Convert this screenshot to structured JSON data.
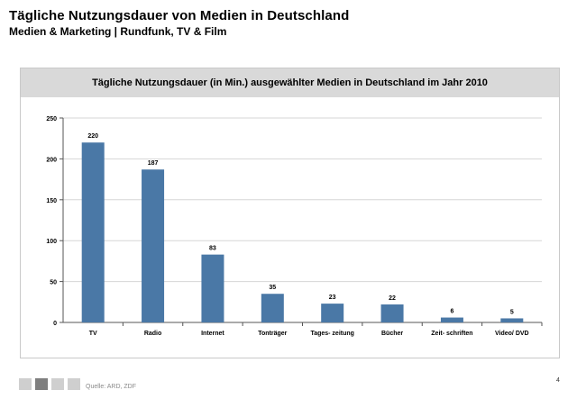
{
  "header": {
    "title": "Tägliche Nutzungsdauer von Medien in Deutschland",
    "subtitle": "Medien & Marketing | Rundfunk, TV & Film"
  },
  "panel": {
    "heading": "Tägliche Nutzungsdauer (in Min.) ausgewählter Medien in Deutschland im Jahr 2010"
  },
  "chart_data": {
    "type": "bar",
    "title": "Tägliche Nutzungsdauer (in Min.) ausgewählter Medien in Deutschland im Jahr 2010",
    "categories": [
      "TV",
      "Radio",
      "Internet",
      "Tonträger",
      "Tages- zeitung",
      "Bücher",
      "Zeit- schriften",
      "Video/ DVD"
    ],
    "values": [
      220,
      187,
      83,
      35,
      23,
      22,
      6,
      5
    ],
    "xlabel": "",
    "ylabel": "",
    "ylim": [
      0,
      250
    ],
    "yticks": [
      0,
      50,
      100,
      150,
      200,
      250
    ],
    "grid": true,
    "legend": "none",
    "bar_color": "#4a78a6"
  },
  "footer": {
    "source": "Quelle: ARD, ZDF",
    "page_number": "4",
    "square_colors": [
      "#cfcfcf",
      "#7f7f7f",
      "#cfcfcf",
      "#cfcfcf"
    ]
  }
}
